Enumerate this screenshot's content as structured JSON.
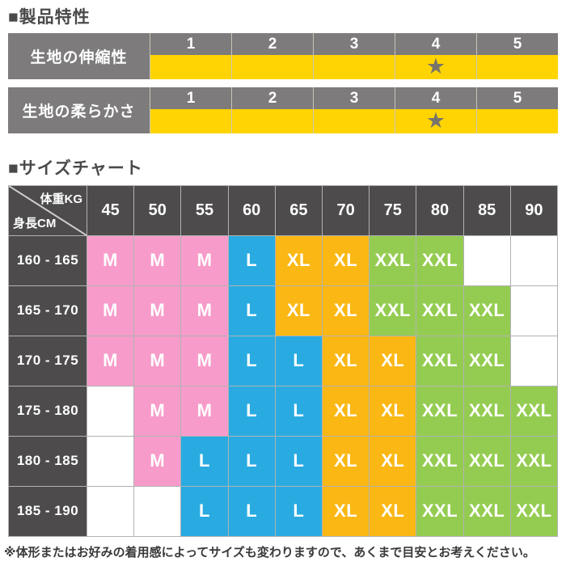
{
  "page": {
    "section1_title": "■製品特性",
    "section2_title": "■サイズチャート",
    "footnote": "※体形またはお好みの着用感によってサイズも変わりますので、あくまで目安とお考えください。"
  },
  "chart_data": [
    {
      "type": "table",
      "name": "rating-elasticity",
      "row_label": "生地の伸縮性",
      "scale": [
        "1",
        "2",
        "3",
        "4",
        "5"
      ],
      "starred": "4",
      "marker": "★",
      "scale_range": [
        1,
        5
      ],
      "value": 4
    },
    {
      "type": "table",
      "name": "rating-softness",
      "row_label": "生地の柔らかさ",
      "scale": [
        "1",
        "2",
        "3",
        "4",
        "5"
      ],
      "starred": "4",
      "marker": "★",
      "scale_range": [
        1,
        5
      ],
      "value": 4
    },
    {
      "type": "table",
      "name": "size-chart",
      "corner_top": "体重KG",
      "corner_bottom": "身長CM",
      "weight_kg": [
        "45",
        "50",
        "55",
        "60",
        "65",
        "70",
        "75",
        "80",
        "85",
        "90"
      ],
      "rows": [
        {
          "label": "160 - 165",
          "sizes": [
            "M",
            "M",
            "M",
            "L",
            "XL",
            "XL",
            "XXL",
            "XXL",
            "",
            ""
          ]
        },
        {
          "label": "165 - 170",
          "sizes": [
            "M",
            "M",
            "M",
            "L",
            "XL",
            "XL",
            "XXL",
            "XXL",
            "XXL",
            ""
          ]
        },
        {
          "label": "170 - 175",
          "sizes": [
            "M",
            "M",
            "M",
            "L",
            "L",
            "XL",
            "XL",
            "XXL",
            "XXL",
            ""
          ]
        },
        {
          "label": "175 - 180",
          "sizes": [
            "",
            "M",
            "M",
            "L",
            "L",
            "XL",
            "XL",
            "XXL",
            "XXL",
            "XXL"
          ]
        },
        {
          "label": "180 - 185",
          "sizes": [
            "",
            "M",
            "L",
            "L",
            "L",
            "XL",
            "XL",
            "XXL",
            "XXL",
            "XXL"
          ]
        },
        {
          "label": "185 - 190",
          "sizes": [
            "",
            "",
            "L",
            "L",
            "L",
            "XL",
            "XL",
            "XXL",
            "XXL",
            "XXL"
          ]
        }
      ],
      "size_colors": {
        "M": "#f79cca",
        "L": "#29abe2",
        "XL": "#fbb713",
        "XXL": "#94cc51",
        "": "#ffffff"
      }
    }
  ],
  "colors": {
    "rating_header_gray": "#7d7b7b",
    "rating_yellow": "#ffd400",
    "star_gray": "#77756b",
    "chart_header_dark": "#4d4b4b",
    "grid_line": "#b2b2b2",
    "title_gray": "#4a4a4a"
  }
}
